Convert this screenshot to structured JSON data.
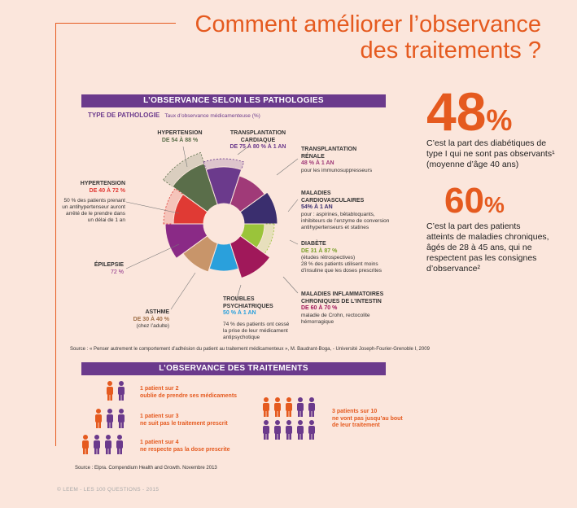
{
  "title": {
    "line1": "Comment améliorer l’observance",
    "line2": "des traitements ?"
  },
  "section1": {
    "band": "L’OBSERVANCE SELON LES PATHOLOGIES",
    "type_label": "TYPE DE PATHOLOGIE",
    "rate_label": "Taux d’observance médicamenteuse (%)"
  },
  "chart_data": {
    "type": "pie",
    "segments": [
      {
        "name": "HYPERTENSION",
        "range": "DE 54 À 88 %",
        "color": "#5a6e4a"
      },
      {
        "name": "TRANSPLANTATION CARDIAQUE",
        "range": "DE 75 À 80 % À 1 AN",
        "color": "#6b3a8c"
      },
      {
        "name": "TRANSPLANTATION RÉNALE",
        "range": "48 % À 1 AN",
        "color": "#a03a78"
      },
      {
        "name": "MALADIES CARDIOVASCULAIRES",
        "range": "54% À 1 AN",
        "color": "#3a2e6e"
      },
      {
        "name": "DIABÈTE",
        "range": "DE 31 À 87 %",
        "color": "#9ac43a"
      },
      {
        "name": "MALADIES INFLAMMATOIRES CHRONIQUES DE L’INTESTIN",
        "range": "DE 60 À 70 %",
        "color": "#a0185a"
      },
      {
        "name": "TROUBLES PSYCHIATRIQUES",
        "range": "50 % À 1 AN",
        "color": "#2aa0dc"
      },
      {
        "name": "ASTHME",
        "range": "DE 30 À 40 %",
        "color": "#c8956a"
      },
      {
        "name": "ÉPILEPSIE",
        "range": "72 %",
        "color": "#8a2a86"
      },
      {
        "name": "HYPERTENSION",
        "range": "DE 40 À 72 %",
        "color": "#e03a34"
      }
    ]
  },
  "labels": {
    "hyp1": {
      "name": "HYPERTENSION",
      "range": "DE 54 À 88 %"
    },
    "tc": {
      "name": "TRANSPLANTATION CARDIAQUE",
      "range": "DE 75 À 80 % À 1 AN"
    },
    "tr": {
      "name1": "TRANSPLANTATION",
      "name2": "RÉNALE",
      "range": "48 % À 1 AN",
      "note": "pour les immunosuppresseurs"
    },
    "mc": {
      "name1": "MALADIES",
      "name2": "CARDIOVASCULAIRES",
      "range": "54% À 1 AN",
      "note1": "pour : aspirines, bêtabloquants,",
      "note2": "inhibiteurs de l’enzyme de conversion",
      "note3": "antihypertenseurs et statines"
    },
    "di": {
      "name": "DIABÈTE",
      "range": "DE 31 À 87 %",
      "note1": "(études rétrospectives)",
      "note2": "28 % des patients utilisent moins",
      "note3": "d’insuline que les doses prescrites"
    },
    "mi": {
      "name1": "MALADIES INFLAMMATOIRES",
      "name2": "CHRONIQUES DE L’INTESTIN",
      "range": "DE 60 À 70 %",
      "note1": "maladie de Crohn, rectocolite",
      "note2": "hémorragique"
    },
    "tp": {
      "name1": "TROUBLES",
      "name2": "PSYCHIATRIQUES",
      "range": "50 % À 1 AN",
      "note1": "74 % des patients ont cessé",
      "note2": "la prise de leur médicament",
      "note3": "antipsychotique"
    },
    "as": {
      "name": "ASTHME",
      "range": "DE 30 À 40 %",
      "note": "(chez l’adulte)"
    },
    "ep": {
      "name": "ÉPILEPSIE",
      "range": "72 %"
    },
    "hyp2": {
      "name": "HYPERTENSION",
      "range": "DE 40 À 72 %",
      "note1": "50 % des patients prenant",
      "note2": "un antihypertenseur auront",
      "note3": "arrêté de le prendre dans",
      "note4": "un délai de 1 an"
    }
  },
  "stat1": {
    "value": "48",
    "unit": "%",
    "l1": "C’est la part des diabétiques de",
    "l2": "type I qui ne sont pas observants¹",
    "l3": "(moyenne d’âge 40 ans)"
  },
  "stat2": {
    "value": "60",
    "unit": "%",
    "l1": "C’est la part des patients",
    "l2": "atteints de maladies chroniques,",
    "l3": "âgés de 28 à 45 ans, qui ne",
    "l4": "respectent pas les consignes",
    "l5": "d’observance²"
  },
  "source1": "Source : « Penser autrement le comportement d’adhésion du patient au traitement médicamenteux », M. Baudrant-Boga, - Université Joseph-Fourier-Grenoble I, 2009",
  "section2": {
    "band": "L’OBSERVANCE DES TRAITEMENTS"
  },
  "people": [
    {
      "l1": "1 patient sur 2",
      "l2": "oublie de prendre ses médicaments"
    },
    {
      "l1": "1 patient sur 3",
      "l2": "ne suit pas le traitement prescrit"
    },
    {
      "l1": "1 patient sur 4",
      "l2": "ne respecte pas la dose prescrite"
    },
    {
      "l1": "3 patients sur 10",
      "l2": "ne vont pas jusqu’au bout",
      "l3": "de leur traitement"
    }
  ],
  "source2": "Source : Elpra. Compendium Health and Growth. Novembre 2013",
  "footer": "© LEEM - LES 100 QUESTIONS - 2015",
  "colors": {
    "accent": "#e55a1f",
    "purple": "#6b3a8c",
    "bg": "#fbe6dc"
  }
}
